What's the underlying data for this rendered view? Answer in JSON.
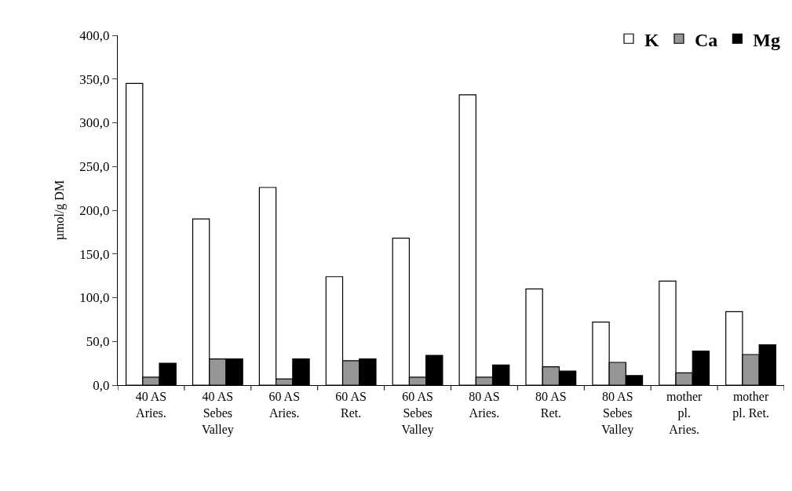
{
  "chart_data": {
    "type": "bar",
    "ylabel": "µmol/g DM",
    "categories": [
      "40 AS\nAries.",
      "40 AS\nSebes\nValley",
      "60 AS\nAries.",
      "60 AS\nRet.",
      "60 AS\nSebes\nValley",
      "80 AS\nAries.",
      "80 AS\nRet.",
      "80 AS\nSebes\nValley",
      "mother\npl.\nAries.",
      "mother\npl. Ret."
    ],
    "series": [
      {
        "name": "K",
        "color": "#ffffff",
        "values": [
          345,
          190,
          226,
          124,
          168,
          332,
          110,
          72,
          119,
          84
        ]
      },
      {
        "name": "Ca",
        "color": "#969696",
        "values": [
          9,
          30,
          7,
          28,
          9,
          9,
          21,
          26,
          14,
          35
        ]
      },
      {
        "name": "Mg",
        "color": "#000000",
        "values": [
          25,
          30,
          30,
          30,
          34,
          23,
          16,
          11,
          39,
          46
        ]
      }
    ],
    "ylim": [
      0,
      400
    ],
    "yticks": [
      {
        "value": 0,
        "label": "0,0"
      },
      {
        "value": 50,
        "label": "50,0"
      },
      {
        "value": 100,
        "label": "100,0"
      },
      {
        "value": 150,
        "label": "150,0"
      },
      {
        "value": 200,
        "label": "200,0"
      },
      {
        "value": 250,
        "label": "250,0"
      },
      {
        "value": 300,
        "label": "300,0"
      },
      {
        "value": 350,
        "label": "350,0"
      },
      {
        "value": 400,
        "label": "400,0"
      }
    ],
    "legend": "top right"
  }
}
